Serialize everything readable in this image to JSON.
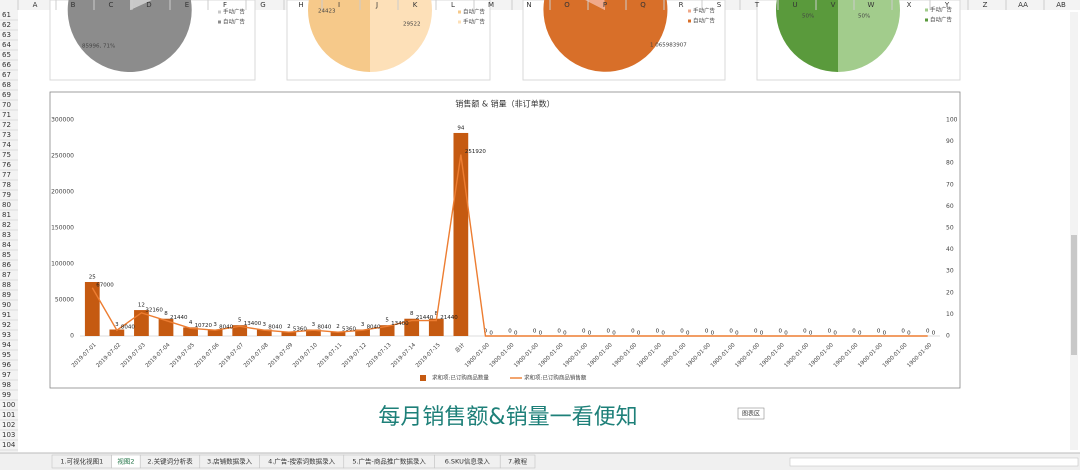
{
  "columns": [
    "A",
    "B",
    "C",
    "D",
    "E",
    "F",
    "G",
    "H",
    "I",
    "J",
    "K",
    "L",
    "M",
    "N",
    "O",
    "P",
    "Q",
    "R",
    "S",
    "T",
    "U",
    "V",
    "W",
    "X",
    "Y",
    "Z",
    "AA",
    "AB"
  ],
  "rows": [
    61,
    62,
    63,
    64,
    65,
    66,
    67,
    68,
    69,
    70,
    71,
    72,
    73,
    74,
    75,
    76,
    77,
    78,
    79,
    80,
    81,
    82,
    83,
    84,
    85,
    86,
    87,
    88,
    89,
    90,
    91,
    92,
    93,
    94,
    95,
    96,
    97,
    98,
    99,
    100,
    101,
    102,
    103,
    104
  ],
  "pies": [
    {
      "legend": [
        "手动广告",
        "自动广告"
      ],
      "labels": [
        "85996, 71%"
      ]
    },
    {
      "legend": [
        "自动广告",
        "手动广告"
      ],
      "labels": [
        "24423",
        "29522"
      ]
    },
    {
      "legend": [
        "手动广告",
        "自动广告"
      ],
      "labels": [
        "1 065983907"
      ]
    },
    {
      "legend": [
        "手动广告",
        "自动广告"
      ],
      "labels": [
        "50%",
        "50%"
      ]
    }
  ],
  "chart_data": {
    "type": "bar",
    "title": "销售额 & 销量（非订单数）",
    "categories": [
      "2019-07-01",
      "2019-07-02",
      "2019-07-03",
      "2019-07-04",
      "2019-07-05",
      "2019-07-06",
      "2019-07-07",
      "2019-07-08",
      "2019-07-09",
      "2019-07-10",
      "2019-07-11",
      "2019-07-12",
      "2019-07-13",
      "2019-07-14",
      "2019-07-15",
      "总计",
      "1900-01-00",
      "1900-01-00",
      "1900-01-00",
      "1900-01-00",
      "1900-01-00",
      "1900-01-00",
      "1900-01-00",
      "1900-01-00",
      "1900-01-00",
      "1900-01-00",
      "1900-01-00",
      "1900-01-00",
      "1900-01-00",
      "1900-01-00",
      "1900-01-00",
      "1900-01-00",
      "1900-01-00",
      "1900-01-00",
      "1900-01-00"
    ],
    "series": [
      {
        "name": "求和项:已订购商品数量",
        "type": "bar",
        "axis": "y2",
        "color": "#c55a11",
        "values": [
          25,
          3,
          12,
          8,
          4,
          3,
          5,
          3,
          2,
          3,
          2,
          3,
          5,
          8,
          8,
          94,
          0,
          0,
          0,
          0,
          0,
          0,
          0,
          0,
          0,
          0,
          0,
          0,
          0,
          0,
          0,
          0,
          0,
          0,
          0
        ]
      },
      {
        "name": "求和项:已订购商品销售额",
        "type": "line",
        "color": "#ed7d31",
        "values": [
          67000,
          8040,
          32160,
          21440,
          10720,
          8040,
          13400,
          8040,
          5360,
          8040,
          5360,
          8040,
          13400,
          21440,
          21440,
          251920,
          0,
          0,
          0,
          0,
          0,
          0,
          0,
          0,
          0,
          0,
          0,
          0,
          0,
          0,
          0,
          0,
          0,
          0,
          0
        ]
      }
    ],
    "ylim": [
      0,
      300000
    ],
    "yticks": [
      0,
      50000,
      100000,
      150000,
      200000,
      250000,
      300000
    ],
    "y2lim": [
      0,
      100
    ],
    "y2ticks": [
      0,
      10,
      20,
      30,
      40,
      50,
      60,
      70,
      80,
      90,
      100
    ],
    "grid": false,
    "legend": "bottom"
  },
  "banner": "每月销售额&销量一看便知",
  "tooltip": "图表区",
  "tabs": [
    "1.可视化视图1",
    "视图2",
    "2.关键词分析表",
    "3.店铺数据录入",
    "4.广告-搜索词数据录入",
    "5.广告-商品推广数据录入",
    "6.SKU信息录入",
    "7.教程"
  ]
}
